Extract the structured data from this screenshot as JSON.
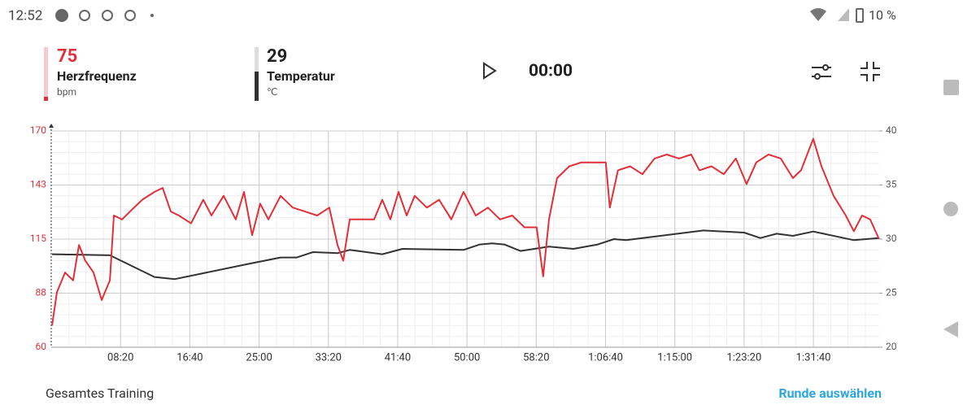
{
  "status_bar": {
    "time": "12:52",
    "battery": "10 %"
  },
  "header": {
    "metric1": {
      "value": "75",
      "label": "Herzfrequenz",
      "unit": "bpm"
    },
    "metric2": {
      "value": "29",
      "label": "Temperatur",
      "unit": "℃"
    },
    "timer": "00:00"
  },
  "chart_data": {
    "type": "line",
    "xlim": [
      0,
      5975
    ],
    "xticks": [
      {
        "value": 500,
        "label": "08:20"
      },
      {
        "value": 1000,
        "label": "16:40"
      },
      {
        "value": 1500,
        "label": "25:00"
      },
      {
        "value": 2000,
        "label": "33:20"
      },
      {
        "value": 2500,
        "label": "41:40"
      },
      {
        "value": 3000,
        "label": "50:00"
      },
      {
        "value": 3500,
        "label": "58:20"
      },
      {
        "value": 4000,
        "label": "1:06:40"
      },
      {
        "value": 4500,
        "label": "1:15:00"
      },
      {
        "value": 5000,
        "label": "1:23:20"
      },
      {
        "value": 5500,
        "label": "1:31:40"
      }
    ],
    "ylim": [
      60,
      170
    ],
    "yticks": [
      60,
      {
        "value": 87.5,
        "label": "88"
      },
      115,
      {
        "value": 142.5,
        "label": "143"
      },
      170
    ],
    "y2lim": [
      20,
      40
    ],
    "y2ticks": [
      20,
      25,
      30,
      35,
      40
    ],
    "grid": true,
    "series": [
      {
        "name": "Herzfrequenz",
        "color": "#e0303a",
        "x": [
          6,
          41,
          100,
          158,
          200,
          246,
          305,
          364,
          423,
          452,
          511,
          569,
          657,
          745,
          804,
          863,
          921,
          1009,
          1097,
          1156,
          1244,
          1332,
          1391,
          1450,
          1508,
          1567,
          1655,
          1743,
          1831,
          1919,
          2007,
          2066,
          2107,
          2154,
          2242,
          2330,
          2389,
          2447,
          2506,
          2565,
          2623,
          2711,
          2799,
          2887,
          2975,
          3063,
          3151,
          3239,
          3327,
          3415,
          3503,
          3550,
          3592,
          3650,
          3738,
          3826,
          3914,
          4002,
          4031,
          4090,
          4178,
          4266,
          4354,
          4442,
          4530,
          4618,
          4677,
          4765,
          4853,
          4941,
          5018,
          5088,
          5176,
          5264,
          5352,
          5411,
          5499,
          5558,
          5646,
          5734,
          5792,
          5851,
          5910,
          5974
        ],
        "values": [
          71,
          88,
          98,
          94,
          112,
          104,
          98,
          84,
          94,
          127,
          125,
          129,
          135,
          139,
          141,
          129,
          127,
          123,
          135,
          127,
          137,
          125,
          139,
          117,
          133,
          125,
          137,
          131,
          129,
          127,
          131,
          112,
          104,
          125,
          125,
          125,
          135,
          125,
          139,
          127,
          137,
          131,
          135,
          125,
          139,
          127,
          131,
          125,
          127,
          121,
          121,
          96,
          125,
          146,
          152,
          154,
          154,
          154,
          131,
          150,
          152,
          148,
          156,
          158,
          156,
          158,
          150,
          152,
          148,
          156,
          143,
          154,
          158,
          156,
          146,
          150,
          166,
          152,
          137,
          127,
          119,
          127,
          125,
          115
        ]
      },
      {
        "name": "Temperatur",
        "color": "#333333",
        "axis": "y2",
        "x": [
          6,
          423,
          745,
          892,
          1420,
          1655,
          1772,
          1890,
          2066,
          2154,
          2389,
          2535,
          2975,
          3093,
          3181,
          3269,
          3386,
          3592,
          3768,
          3944,
          4061,
          4149,
          4707,
          5000,
          5117,
          5235,
          5352,
          5499,
          5792,
          5974
        ],
        "values": [
          28.6,
          28.5,
          26.5,
          26.3,
          27.7,
          28.3,
          28.3,
          28.8,
          28.7,
          29.0,
          28.6,
          29.1,
          29.0,
          29.5,
          29.6,
          29.5,
          28.9,
          29.3,
          29.1,
          29.5,
          30.0,
          29.9,
          30.8,
          30.6,
          30.1,
          30.5,
          30.3,
          30.7,
          29.9,
          30.1
        ]
      }
    ]
  },
  "footer": {
    "left": "Gesamtes Training",
    "right": "Runde auswählen"
  }
}
